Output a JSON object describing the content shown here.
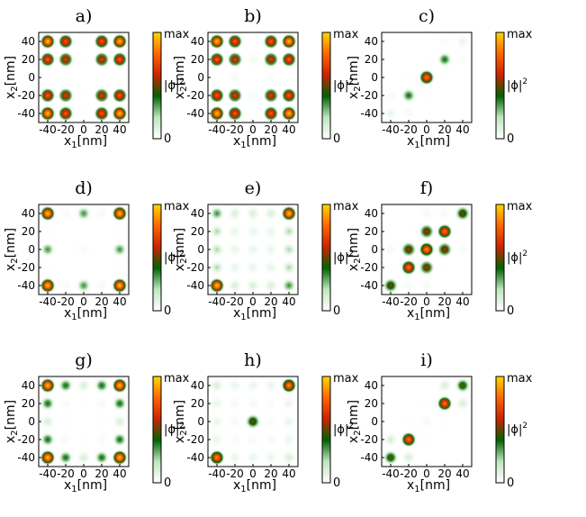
{
  "colorbar": {
    "colors": [
      "#ffffff",
      "#bfe6bf",
      "#006400",
      "#cc2200",
      "#ff6600",
      "#ffd700"
    ],
    "max_label": "max",
    "min_label": "0",
    "quantity_label": "|ϕ|",
    "quantity_exp": "2"
  },
  "chart_data": [
    {
      "panel": "a)",
      "type": "heatmap",
      "xlabel": "x",
      "xlabel_sub": "1",
      "xlabel_unit": "[nm]",
      "ylabel": "x",
      "ylabel_sub": "2",
      "ylabel_unit": "[nm]",
      "xticks": [
        -40,
        -20,
        0,
        20,
        40
      ],
      "yticks": [
        40,
        20,
        0,
        -20,
        -40
      ],
      "xlim": [
        -50,
        50
      ],
      "ylim": [
        -50,
        50
      ],
      "grid_x": [
        -40,
        -20,
        0,
        20,
        40
      ],
      "grid_y": [
        40,
        20,
        0,
        -20,
        -40
      ],
      "intensity": [
        [
          1.0,
          0.8,
          0.05,
          0.8,
          1.0
        ],
        [
          0.8,
          0.7,
          0.03,
          0.7,
          0.8
        ],
        [
          0.05,
          0.03,
          0,
          0.03,
          0.05
        ],
        [
          0.8,
          0.7,
          0.03,
          0.7,
          0.8
        ],
        [
          1.0,
          0.8,
          0.05,
          0.8,
          1.0
        ]
      ]
    },
    {
      "panel": "b)",
      "type": "heatmap",
      "xlabel": "x",
      "xlabel_sub": "1",
      "xlabel_unit": "[nm]",
      "ylabel": "x",
      "ylabel_sub": "2",
      "ylabel_unit": "[nm]",
      "xticks": [
        -40,
        -20,
        0,
        20,
        40
      ],
      "yticks": [
        40,
        20,
        0,
        -20,
        -40
      ],
      "xlim": [
        -50,
        50
      ],
      "ylim": [
        -50,
        50
      ],
      "grid_x": [
        -40,
        -20,
        0,
        20,
        40
      ],
      "grid_y": [
        40,
        20,
        0,
        -20,
        -40
      ],
      "intensity": [
        [
          1.0,
          0.8,
          0.02,
          0.8,
          1.0
        ],
        [
          0.8,
          0.7,
          0.1,
          0.7,
          0.8
        ],
        [
          0.02,
          0.1,
          0.02,
          0.1,
          0.02
        ],
        [
          0.8,
          0.7,
          0.1,
          0.7,
          0.8
        ],
        [
          1.0,
          0.8,
          0.02,
          0.8,
          1.0
        ]
      ]
    },
    {
      "panel": "c)",
      "type": "heatmap",
      "xlabel": "x",
      "xlabel_sub": "1",
      "xlabel_unit": "[nm]",
      "ylabel": "x",
      "ylabel_sub": "2",
      "ylabel_unit": "[nm]",
      "xticks": [
        -40,
        -20,
        0,
        20,
        40
      ],
      "yticks": [
        40,
        20,
        0,
        -20,
        -40
      ],
      "xlim": [
        -50,
        50
      ],
      "ylim": [
        -50,
        50
      ],
      "grid_x": [
        -40,
        -20,
        0,
        20,
        40
      ],
      "grid_y": [
        40,
        20,
        0,
        -20,
        -40
      ],
      "intensity": [
        [
          0,
          0,
          0,
          0.08,
          0.15
        ],
        [
          0,
          0,
          0.03,
          0.4,
          0.08
        ],
        [
          0,
          0.05,
          0.85,
          0.03,
          0
        ],
        [
          0.1,
          0.4,
          0.05,
          0,
          0
        ],
        [
          0.15,
          0.1,
          0,
          0,
          0
        ]
      ]
    },
    {
      "panel": "d)",
      "type": "heatmap",
      "xlabel": "x",
      "xlabel_sub": "1",
      "xlabel_unit": "[nm]",
      "ylabel": "x",
      "ylabel_sub": "2",
      "ylabel_unit": "[nm]",
      "xticks": [
        -40,
        -20,
        0,
        20,
        40
      ],
      "yticks": [
        40,
        20,
        0,
        -20,
        -40
      ],
      "xlim": [
        -50,
        50
      ],
      "ylim": [
        -50,
        50
      ],
      "grid_x": [
        -40,
        -20,
        0,
        20,
        40
      ],
      "grid_y": [
        40,
        20,
        0,
        -20,
        -40
      ],
      "intensity": [
        [
          1.0,
          0.1,
          0.35,
          0.1,
          1.0
        ],
        [
          0.05,
          0,
          0,
          0,
          0.05
        ],
        [
          0.35,
          0,
          0.1,
          0,
          0.35
        ],
        [
          0.05,
          0,
          0,
          0,
          0.05
        ],
        [
          1.0,
          0.1,
          0.35,
          0.1,
          1.0
        ]
      ]
    },
    {
      "panel": "e)",
      "type": "heatmap",
      "xlabel": "x",
      "xlabel_sub": "1",
      "xlabel_unit": "[nm]",
      "ylabel": "x",
      "ylabel_sub": "2",
      "ylabel_unit": "[nm]",
      "xticks": [
        -40,
        -20,
        0,
        20,
        40
      ],
      "yticks": [
        40,
        20,
        0,
        -20,
        -40
      ],
      "xlim": [
        -50,
        50
      ],
      "ylim": [
        -50,
        50
      ],
      "grid_x": [
        -40,
        -20,
        0,
        20,
        40
      ],
      "grid_y": [
        40,
        20,
        0,
        -20,
        -40
      ],
      "intensity": [
        [
          0.35,
          0.2,
          0.2,
          0.2,
          1.0
        ],
        [
          0.25,
          0.15,
          0.15,
          0.15,
          0.25
        ],
        [
          0.25,
          0.15,
          0.15,
          0.15,
          0.25
        ],
        [
          0.25,
          0.15,
          0.15,
          0.15,
          0.25
        ],
        [
          1.0,
          0.2,
          0.2,
          0.2,
          0.35
        ]
      ]
    },
    {
      "panel": "f)",
      "type": "heatmap",
      "xlabel": "x",
      "xlabel_sub": "1",
      "xlabel_unit": "[nm]",
      "ylabel": "x",
      "ylabel_sub": "2",
      "ylabel_unit": "[nm]",
      "xticks": [
        -40,
        -20,
        0,
        20,
        40
      ],
      "yticks": [
        40,
        20,
        0,
        -20,
        -40
      ],
      "xlim": [
        -50,
        50
      ],
      "ylim": [
        -50,
        50
      ],
      "grid_x": [
        -40,
        -20,
        0,
        20,
        40
      ],
      "grid_y": [
        40,
        20,
        0,
        -20,
        -40
      ],
      "intensity": [
        [
          0,
          0,
          0.1,
          0.1,
          0.55
        ],
        [
          0,
          0.03,
          0.6,
          0.85,
          0.05
        ],
        [
          0.1,
          0.6,
          0.9,
          0.6,
          0.1
        ],
        [
          0.05,
          0.85,
          0.6,
          0.03,
          0
        ],
        [
          0.55,
          0.1,
          0.1,
          0,
          0
        ]
      ]
    },
    {
      "panel": "g)",
      "type": "heatmap",
      "xlabel": "x",
      "xlabel_sub": "1",
      "xlabel_unit": "[nm]",
      "ylabel": "x",
      "ylabel_sub": "2",
      "ylabel_unit": "[nm]",
      "xticks": [
        -40,
        -20,
        0,
        20,
        40
      ],
      "yticks": [
        40,
        20,
        0,
        -20,
        -40
      ],
      "xlim": [
        -50,
        50
      ],
      "ylim": [
        -50,
        50
      ],
      "grid_x": [
        -40,
        -20,
        0,
        20,
        40
      ],
      "grid_y": [
        40,
        20,
        0,
        -20,
        -40
      ],
      "intensity": [
        [
          1.0,
          0.4,
          0.2,
          0.4,
          1.0
        ],
        [
          0.4,
          0.1,
          0.05,
          0.1,
          0.4
        ],
        [
          0.2,
          0.05,
          0.02,
          0.05,
          0.2
        ],
        [
          0.4,
          0.1,
          0.05,
          0.1,
          0.4
        ],
        [
          1.0,
          0.4,
          0.2,
          0.4,
          1.0
        ]
      ]
    },
    {
      "panel": "h)",
      "type": "heatmap",
      "xlabel": "x",
      "xlabel_sub": "1",
      "xlabel_unit": "[nm]",
      "ylabel": "x",
      "ylabel_sub": "2",
      "ylabel_unit": "[nm]",
      "xticks": [
        -40,
        -20,
        0,
        20,
        40
      ],
      "yticks": [
        40,
        20,
        0,
        -20,
        -40
      ],
      "xlim": [
        -50,
        50
      ],
      "ylim": [
        -50,
        50
      ],
      "grid_x": [
        -40,
        -20,
        0,
        20,
        40
      ],
      "grid_y": [
        40,
        20,
        0,
        -20,
        -40
      ],
      "intensity": [
        [
          0.2,
          0.15,
          0.15,
          0.15,
          0.9
        ],
        [
          0.15,
          0.1,
          0.1,
          0.1,
          0.15
        ],
        [
          0.15,
          0.1,
          0.55,
          0.1,
          0.15
        ],
        [
          0.15,
          0.1,
          0.1,
          0.1,
          0.15
        ],
        [
          0.9,
          0.15,
          0.15,
          0.15,
          0.2
        ]
      ]
    },
    {
      "panel": "i)",
      "type": "heatmap",
      "xlabel": "x",
      "xlabel_sub": "1",
      "xlabel_unit": "[nm]",
      "ylabel": "x",
      "ylabel_sub": "2",
      "ylabel_unit": "[nm]",
      "xticks": [
        -40,
        -20,
        0,
        20,
        40
      ],
      "yticks": [
        40,
        20,
        0,
        -20,
        -40
      ],
      "xlim": [
        -50,
        50
      ],
      "ylim": [
        -50,
        50
      ],
      "grid_x": [
        -40,
        -20,
        0,
        20,
        40
      ],
      "grid_y": [
        40,
        20,
        0,
        -20,
        -40
      ],
      "intensity": [
        [
          0,
          0,
          0,
          0.2,
          0.5
        ],
        [
          0,
          0,
          0.05,
          0.85,
          0.2
        ],
        [
          0,
          0.05,
          0.1,
          0.05,
          0
        ],
        [
          0.2,
          0.85,
          0.05,
          0,
          0
        ],
        [
          0.5,
          0.2,
          0,
          0,
          0
        ]
      ]
    }
  ]
}
